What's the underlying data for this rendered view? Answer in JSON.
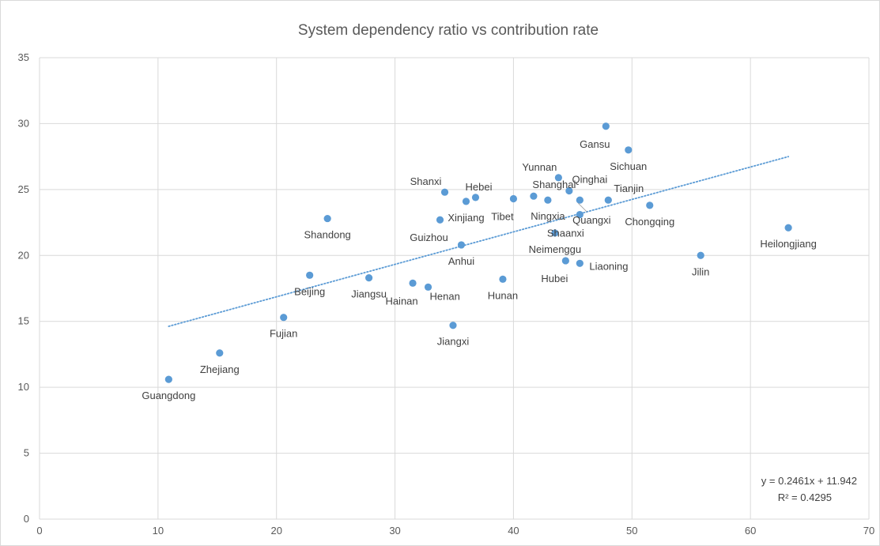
{
  "chart_data": {
    "type": "scatter",
    "title": "System dependency ratio vs contribution rate",
    "xlabel": "",
    "ylabel": "",
    "xlim": [
      0,
      70
    ],
    "ylim": [
      0,
      35
    ],
    "x_ticks": [
      0,
      10,
      20,
      30,
      40,
      50,
      60,
      70
    ],
    "y_ticks": [
      0,
      5,
      10,
      15,
      20,
      25,
      30,
      35
    ],
    "grid": true,
    "legend": "none",
    "marker_color": "#5b9bd5",
    "trendline": {
      "type": "linear",
      "slope": 0.2461,
      "intercept": 11.942,
      "x_range": [
        10.9,
        63.2
      ],
      "color": "#5b9bd5",
      "style": "dotted",
      "equation_label": "y = 0.2461x + 11.942",
      "r2_label": "R² = 0.4295"
    },
    "points": [
      {
        "name": "Gansu",
        "x": 47.8,
        "y": 29.8,
        "label_pos": "below-left"
      },
      {
        "name": "Sichuan",
        "x": 49.7,
        "y": 28.0,
        "label_pos": "below"
      },
      {
        "name": "Yunnan",
        "x": 43.8,
        "y": 25.9,
        "label_pos": "above-left"
      },
      {
        "name": "Qinghai",
        "x": 44.7,
        "y": 24.9,
        "label_pos": "above-right"
      },
      {
        "name": "Shanxi",
        "x": 34.2,
        "y": 24.8,
        "label_pos": "above-left"
      },
      {
        "name": "Hebei",
        "x": 36.8,
        "y": 24.4,
        "label_pos": "above"
      },
      {
        "name": "Shanghai",
        "x": 41.7,
        "y": 24.5,
        "label_pos": "above-right"
      },
      {
        "name": "Xinjiang",
        "x": 36.0,
        "y": 24.1,
        "label_pos": "below"
      },
      {
        "name": "Tibet",
        "x": 40.0,
        "y": 24.3,
        "label_pos": "below-left"
      },
      {
        "name": "Ningxia",
        "x": 42.9,
        "y": 24.2,
        "label_pos": "below"
      },
      {
        "name": "Tianjin",
        "x": 48.0,
        "y": 24.2,
        "label_pos": "above-right"
      },
      {
        "name": "Quangxi",
        "x": 45.6,
        "y": 24.2,
        "label_pos": "leader"
      },
      {
        "name": "Guizhou",
        "x": 33.8,
        "y": 22.7,
        "label_pos": "below-left"
      },
      {
        "name": "Shaanxi",
        "x": 45.6,
        "y": 23.1,
        "label_pos": "leader-below"
      },
      {
        "name": "Chongqing",
        "x": 51.5,
        "y": 23.8,
        "label_pos": "below"
      },
      {
        "name": "Shandong",
        "x": 24.3,
        "y": 22.8,
        "label_pos": "below"
      },
      {
        "name": "Heilongjiang",
        "x": 63.2,
        "y": 22.1,
        "label_pos": "below"
      },
      {
        "name": "Neimenggu",
        "x": 43.5,
        "y": 21.7,
        "label_pos": "below"
      },
      {
        "name": "Anhui",
        "x": 35.6,
        "y": 20.8,
        "label_pos": "below"
      },
      {
        "name": "Jilin",
        "x": 55.8,
        "y": 20.0,
        "label_pos": "below"
      },
      {
        "name": "Hubei",
        "x": 44.4,
        "y": 19.6,
        "label_pos": "below-left"
      },
      {
        "name": "Liaoning",
        "x": 45.6,
        "y": 19.4,
        "label_pos": "right"
      },
      {
        "name": "Beijing",
        "x": 22.8,
        "y": 18.5,
        "label_pos": "below"
      },
      {
        "name": "Jiangsu",
        "x": 27.8,
        "y": 18.3,
        "label_pos": "below"
      },
      {
        "name": "Hunan",
        "x": 39.1,
        "y": 18.2,
        "label_pos": "below"
      },
      {
        "name": "Hainan",
        "x": 31.5,
        "y": 17.9,
        "label_pos": "below-left"
      },
      {
        "name": "Henan",
        "x": 32.8,
        "y": 17.6,
        "label_pos": "right-below"
      },
      {
        "name": "Fujian",
        "x": 20.6,
        "y": 15.3,
        "label_pos": "below"
      },
      {
        "name": "Jiangxi",
        "x": 34.9,
        "y": 14.7,
        "label_pos": "below"
      },
      {
        "name": "Zhejiang",
        "x": 15.2,
        "y": 12.6,
        "label_pos": "below"
      },
      {
        "name": "Guangdong",
        "x": 10.9,
        "y": 10.6,
        "label_pos": "below"
      }
    ]
  }
}
